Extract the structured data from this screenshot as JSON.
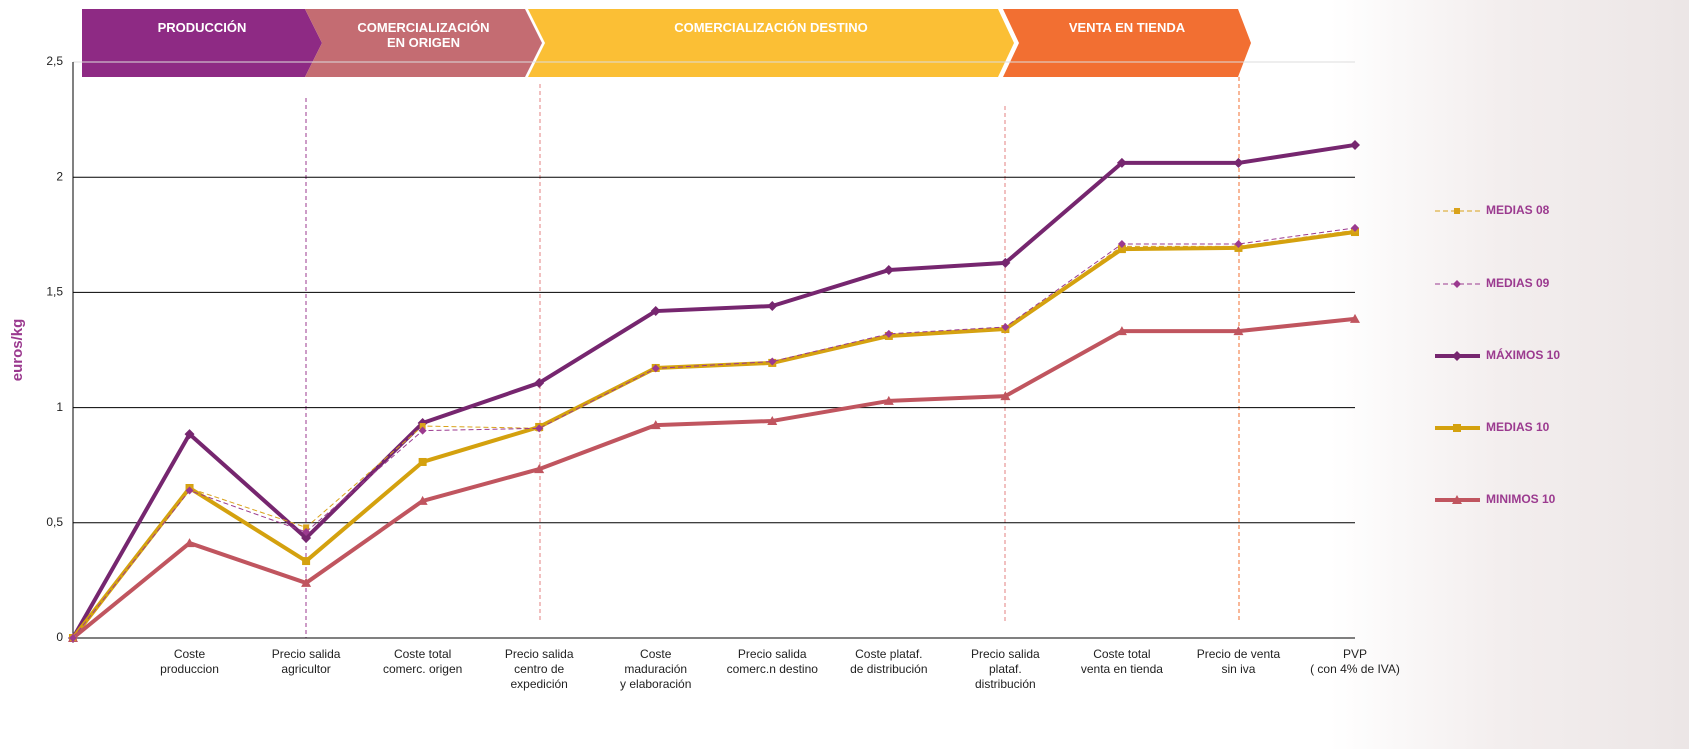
{
  "chart_data": {
    "type": "line",
    "y_label": "euros/kg",
    "stages": [
      {
        "label": "PRODUCCIÓN",
        "color": "#8e2a84"
      },
      {
        "label": "COMERCIALIZACIÓN\nEN ORIGEN",
        "color": "#c46c72"
      },
      {
        "label": "COMERCIALIZACIÓN DESTINO",
        "color": "#fbbf35"
      },
      {
        "label": "VENTA EN TIENDA",
        "color": "#f26f32"
      }
    ],
    "categories": [
      null,
      "Coste\nproduccion",
      "Precio salida\nagricultor",
      "Coste total\ncomerc. origen",
      "Precio salida\ncentro de\nexpedición",
      "Coste\nmaduración\ny elaboración",
      "Precio salida\ncomerc.n destino",
      "Coste plataf.\nde distribución",
      "Precio salida\nplataf.\ndistribución",
      "Coste total\nventa en tienda",
      "Precio de venta\nsin iva",
      "PVP\n( con 4% de IVA)"
    ],
    "series": [
      {
        "name": "MEDIAS 08",
        "color": "#d9a21a",
        "style": "dashed",
        "marker": "square",
        "values": [
          0,
          0.65,
          0.48,
          0.92,
          0.91,
          1.17,
          1.19,
          1.31,
          1.34,
          1.7,
          1.7,
          1.77
        ]
      },
      {
        "name": "MEDIAS 09",
        "color": "#9b3a8f",
        "style": "dashed",
        "marker": "diamond",
        "values": [
          0,
          0.64,
          0.46,
          0.9,
          0.91,
          1.17,
          1.2,
          1.32,
          1.35,
          1.71,
          1.71,
          1.78
        ]
      },
      {
        "name": "MÁXIMOS 10",
        "color": "#76266f",
        "style": "solid",
        "marker": "diamond",
        "values": [
          0,
          0.885,
          0.434,
          0.933,
          1.107,
          1.419,
          1.441,
          1.597,
          1.628,
          2.062,
          2.062,
          2.14
        ]
      },
      {
        "name": "MEDIAS 10",
        "color": "#d4a10e",
        "style": "solid",
        "marker": "square",
        "values": [
          0,
          0.651,
          0.334,
          0.764,
          0.916,
          1.172,
          1.194,
          1.311,
          1.341,
          1.688,
          1.693,
          1.762
        ]
      },
      {
        "name": "MINIMOS 10",
        "color": "#c0555f",
        "style": "solid",
        "marker": "triangle",
        "values": [
          0,
          0.412,
          0.239,
          0.595,
          0.733,
          0.924,
          0.942,
          1.029,
          1.05,
          1.332,
          1.332,
          1.385
        ]
      }
    ],
    "ylim": [
      0,
      2.5
    ],
    "yticks": [
      0,
      {
        "value": 0.5,
        "label": "0,5"
      },
      1,
      {
        "value": 1.5,
        "label": "1,5"
      },
      2,
      {
        "value": 2.5,
        "label": "2,5"
      }
    ],
    "grid": true
  }
}
